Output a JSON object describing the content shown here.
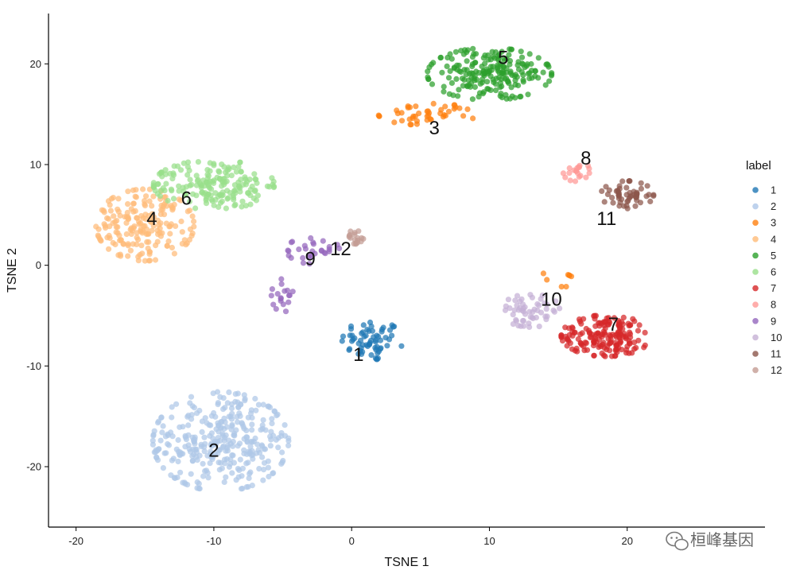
{
  "chart_data": {
    "type": "scatter",
    "xlabel": "TSNE 1",
    "ylabel": "TSNE 2",
    "xlim": [
      -22,
      30
    ],
    "ylim": [
      -26,
      25
    ],
    "xticks": [
      -20,
      -10,
      0,
      10,
      20
    ],
    "yticks": [
      -20,
      -10,
      0,
      10,
      20
    ],
    "grid": false,
    "legend": {
      "title": "label",
      "position": "right"
    },
    "series": [
      {
        "name": "1",
        "color": "#1f77b4",
        "label_pos": [
          0.5,
          -9
        ],
        "clusters": [
          {
            "cx": 1.5,
            "cy": -7.5,
            "sx": 1.6,
            "sy": 1.5,
            "n": 65
          }
        ]
      },
      {
        "name": "2",
        "color": "#aec7e8",
        "label_pos": [
          -10,
          -18.5
        ],
        "clusters": [
          {
            "cx": -9.5,
            "cy": -17.5,
            "sx": 3.6,
            "sy": 3.6,
            "n": 330
          }
        ]
      },
      {
        "name": "3",
        "color": "#ff7f0e",
        "label_pos": [
          6,
          13.5
        ],
        "clusters": [
          {
            "cx": 5.5,
            "cy": 15.0,
            "sx": 2.6,
            "sy": 0.8,
            "n": 45
          },
          {
            "cx": 14.5,
            "cy": -1.5,
            "sx": 1.2,
            "sy": 0.6,
            "n": 8
          }
        ]
      },
      {
        "name": "4",
        "color": "#ffbb78",
        "label_pos": [
          -14.5,
          4.5
        ],
        "clusters": [
          {
            "cx": -15,
            "cy": 4.0,
            "sx": 2.6,
            "sy": 2.6,
            "n": 190
          }
        ]
      },
      {
        "name": "5",
        "color": "#2ca02c",
        "label_pos": [
          11,
          20.5
        ],
        "clusters": [
          {
            "cx": 10,
            "cy": 19.0,
            "sx": 3.3,
            "sy": 1.9,
            "n": 210
          }
        ]
      },
      {
        "name": "6",
        "color": "#98df8a",
        "label_pos": [
          -12,
          6.5
        ],
        "clusters": [
          {
            "cx": -10,
            "cy": 8.0,
            "sx": 3.2,
            "sy": 1.8,
            "n": 185
          }
        ]
      },
      {
        "name": "7",
        "color": "#d62728",
        "label_pos": [
          19,
          -6
        ],
        "clusters": [
          {
            "cx": 18.5,
            "cy": -7.0,
            "sx": 2.4,
            "sy": 1.5,
            "n": 175
          }
        ]
      },
      {
        "name": "8",
        "color": "#ff9896",
        "label_pos": [
          17,
          10.5
        ],
        "clusters": [
          {
            "cx": 16.3,
            "cy": 9.3,
            "sx": 0.8,
            "sy": 0.7,
            "n": 20
          }
        ]
      },
      {
        "name": "9",
        "color": "#9467bd",
        "label_pos": [
          -3,
          0.5
        ],
        "clusters": [
          {
            "cx": -2.8,
            "cy": 1.5,
            "sx": 1.4,
            "sy": 1.0,
            "n": 30
          },
          {
            "cx": -5,
            "cy": -3.0,
            "sx": 0.6,
            "sy": 1.2,
            "n": 18
          }
        ]
      },
      {
        "name": "10",
        "color": "#c5b0d5",
        "label_pos": [
          14.5,
          -3.5
        ],
        "clusters": [
          {
            "cx": 13,
            "cy": -4.5,
            "sx": 1.6,
            "sy": 1.2,
            "n": 55
          }
        ]
      },
      {
        "name": "11",
        "color": "#8c564b",
        "label_pos": [
          18.5,
          4.5
        ],
        "clusters": [
          {
            "cx": 20,
            "cy": 7.0,
            "sx": 1.4,
            "sy": 1.0,
            "n": 55
          }
        ]
      },
      {
        "name": "12",
        "color": "#c49c94",
        "label_pos": [
          -0.8,
          1.5
        ],
        "clusters": [
          {
            "cx": 0.3,
            "cy": 2.8,
            "sx": 0.5,
            "sy": 0.5,
            "n": 18
          }
        ]
      }
    ]
  },
  "watermark": {
    "text": "桓峰基因",
    "icon": "wechat-icon"
  }
}
